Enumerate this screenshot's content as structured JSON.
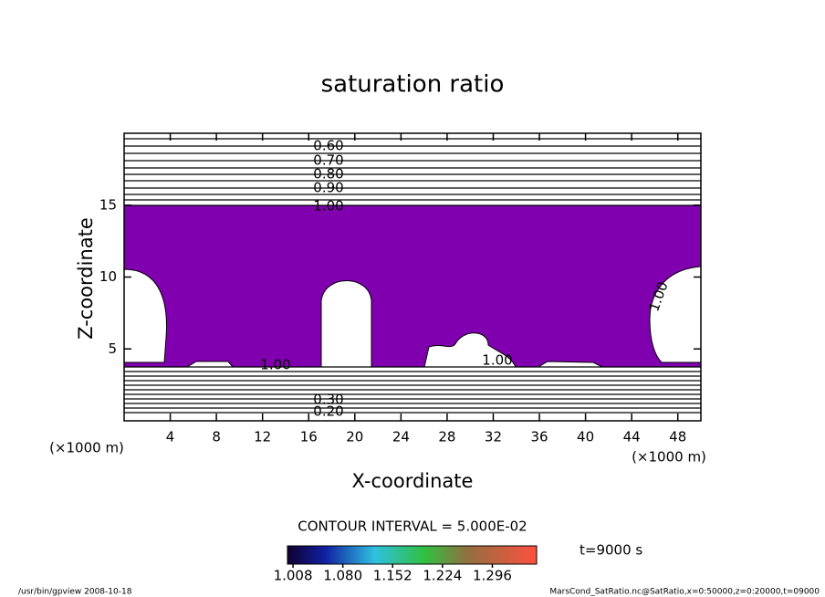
{
  "chart_data": {
    "type": "contour",
    "title": "saturation ratio",
    "x_label": "X-coordinate",
    "y_label": "Z-coordinate",
    "x_unit": "(×1000 m)",
    "y_unit": "(×1000 m)",
    "xlim": [
      0,
      50
    ],
    "ylim": [
      0,
      20
    ],
    "xticks": [
      4,
      8,
      12,
      16,
      20,
      24,
      28,
      32,
      36,
      40,
      44,
      48
    ],
    "yticks": [
      5,
      10,
      15
    ],
    "fill_color": "#8000b0",
    "contour_labels_top": [
      "0.60",
      "0.70",
      "0.80",
      "0.90",
      "1.00"
    ],
    "contour_labels_inner": [
      "1.00",
      "1.00",
      "1.00"
    ],
    "contour_labels_bottom": [
      "0.30",
      "0.20"
    ],
    "contour_interval": "CONTOUR INTERVAL = 5.000E-02",
    "time": "t=9000 s",
    "colorbar": {
      "lim": [
        1.0,
        1.36
      ],
      "ticks": [
        1.008,
        {
          "value": 1.08,
          "label": "1.080"
        },
        1.152,
        1.224,
        1.296
      ]
    },
    "footer_left": "/usr/bin/gpview  2008-10-18",
    "footer_right": "MarsCond_SatRatio.nc@SatRatio,x=0:50000,z=0:20000,t=09000"
  }
}
